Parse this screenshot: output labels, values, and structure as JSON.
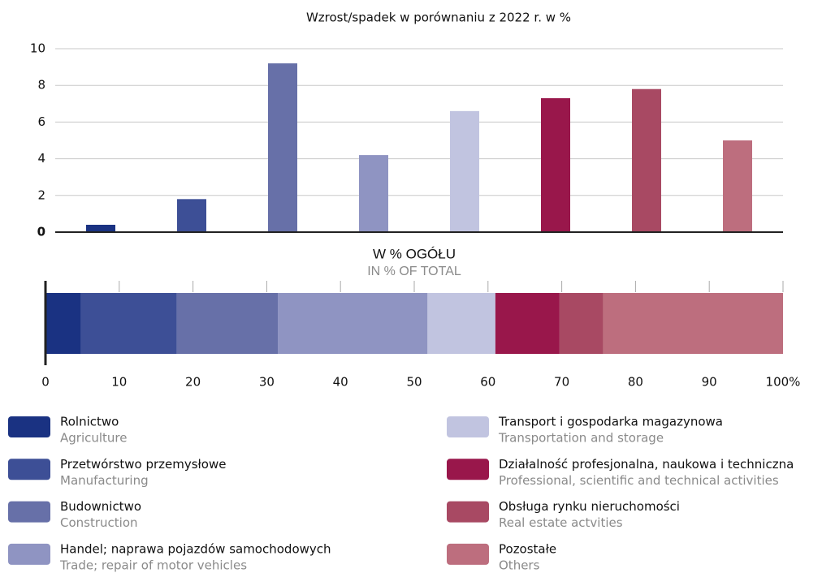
{
  "chart_data": [
    {
      "type": "bar",
      "title": "Wzrost/spadek w porównaniu z 2022 r. w %",
      "categories": [
        null,
        null,
        null,
        null,
        null,
        null,
        null,
        null
      ],
      "values": [
        0.4,
        1.8,
        9.2,
        4.2,
        6.6,
        7.3,
        7.8,
        5.0
      ],
      "colors": [
        "#1a3282",
        "#3d4f96",
        "#6770a8",
        "#8f94c2",
        "#c1c4e0",
        "#99174b",
        "#a84963",
        "#bd6e7e"
      ],
      "ylim": [
        0,
        10
      ],
      "yticks": [
        0,
        2,
        4,
        6,
        8,
        10
      ],
      "grid": true
    },
    {
      "type": "stacked-bar-horizontal",
      "title": "W % OGÓŁU",
      "subtitle": "IN % OF TOTAL",
      "xlim": [
        0,
        100
      ],
      "xticks": [
        0,
        10,
        20,
        30,
        40,
        50,
        60,
        70,
        80,
        90,
        {
          "value": 100,
          "label": "100%"
        }
      ],
      "series": [
        {
          "name": "Rolnictwo",
          "name_en": "Agriculture",
          "color": "#1a3282",
          "values": [
            4.8
          ]
        },
        {
          "name": "Przetwórstwo przemysłowe",
          "name_en": "Manufacturing",
          "color": "#3d4f96",
          "values": [
            13.0
          ]
        },
        {
          "name": "Budownictwo",
          "name_en": "Construction",
          "color": "#6770a8",
          "values": [
            13.7
          ]
        },
        {
          "name": "Handel; naprawa pojazdów samochodowych",
          "name_en": "Trade; repair of motor vehicles",
          "color": "#8f94c2",
          "values": [
            20.3
          ]
        },
        {
          "name": "Transport i gospodarka magazynowa",
          "name_en": "Transportation and storage",
          "color": "#c1c4e0",
          "values": [
            9.2
          ]
        },
        {
          "name": "Działalność profesjonalna, naukowa i techniczna",
          "name_en": "Professional, scientific and technical activities",
          "color": "#99174b",
          "values": [
            8.7
          ]
        },
        {
          "name": "Obsługa rynku nieruchomości",
          "name_en": "Real estate actvities",
          "color": "#a84963",
          "values": [
            5.9
          ]
        },
        {
          "name": "Pozostałe",
          "name_en": "Others",
          "color": "#bd6e7e",
          "values": [
            24.4
          ]
        }
      ]
    }
  ]
}
